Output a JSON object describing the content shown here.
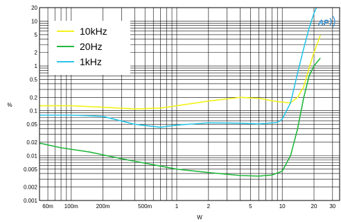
{
  "chart_data": {
    "type": "line",
    "title": "",
    "xlabel": "W",
    "ylabel": "%",
    "x_scale": "log",
    "y_scale": "log",
    "xlim": [
      0.05,
      35
    ],
    "ylim": [
      0.001,
      20
    ],
    "grid": true,
    "legend_position": "top-left",
    "x_ticks": [
      {
        "v": 0.06,
        "label": "60m"
      },
      {
        "v": 0.1,
        "label": "100m"
      },
      {
        "v": 0.2,
        "label": "200m"
      },
      {
        "v": 0.5,
        "label": "500m"
      },
      {
        "v": 1,
        "label": "1"
      },
      {
        "v": 2,
        "label": "2"
      },
      {
        "v": 5,
        "label": "5"
      },
      {
        "v": 10,
        "label": "10"
      },
      {
        "v": 20,
        "label": "20"
      },
      {
        "v": 30,
        "label": "30"
      }
    ],
    "y_ticks": [
      {
        "v": 0.001,
        "label": "0.001"
      },
      {
        "v": 0.002,
        "label": "0.002"
      },
      {
        "v": 0.005,
        "label": "0.005"
      },
      {
        "v": 0.01,
        "label": "0.01"
      },
      {
        "v": 0.02,
        "label": "0.02"
      },
      {
        "v": 0.05,
        "label": "0.05"
      },
      {
        "v": 0.1,
        "label": "0.1"
      },
      {
        "v": 0.2,
        "label": "0.2"
      },
      {
        "v": 0.5,
        "label": "0.5"
      },
      {
        "v": 1,
        "label": "1"
      },
      {
        "v": 2,
        "label": "2"
      },
      {
        "v": 5,
        "label": "5"
      },
      {
        "v": 10,
        "label": "10"
      },
      {
        "v": 20,
        "label": "20"
      }
    ],
    "series": [
      {
        "name": "10kHz",
        "color": "#f2f21a",
        "points": [
          [
            0.05,
            0.13
          ],
          [
            0.1,
            0.13
          ],
          [
            0.2,
            0.12
          ],
          [
            0.4,
            0.11
          ],
          [
            0.7,
            0.115
          ],
          [
            1,
            0.13
          ],
          [
            2,
            0.165
          ],
          [
            4,
            0.2
          ],
          [
            6,
            0.19
          ],
          [
            9,
            0.16
          ],
          [
            12,
            0.15
          ],
          [
            14,
            0.2
          ],
          [
            16,
            0.35
          ],
          [
            18,
            0.9
          ],
          [
            20,
            2.0
          ],
          [
            23,
            4.8
          ]
        ]
      },
      {
        "name": "20Hz",
        "color": "#22b83c",
        "points": [
          [
            0.05,
            0.019
          ],
          [
            0.08,
            0.015
          ],
          [
            0.15,
            0.012
          ],
          [
            0.3,
            0.0085
          ],
          [
            0.5,
            0.0068
          ],
          [
            1,
            0.005
          ],
          [
            2,
            0.0042
          ],
          [
            4,
            0.0036
          ],
          [
            6,
            0.0035
          ],
          [
            8,
            0.0037
          ],
          [
            10,
            0.0045
          ],
          [
            12,
            0.01
          ],
          [
            14,
            0.04
          ],
          [
            16,
            0.2
          ],
          [
            18,
            0.6
          ],
          [
            20,
            1.0
          ],
          [
            23,
            1.5
          ]
        ]
      },
      {
        "name": "1kHz",
        "color": "#29c6e8",
        "points": [
          [
            0.05,
            0.08
          ],
          [
            0.1,
            0.08
          ],
          [
            0.2,
            0.075
          ],
          [
            0.4,
            0.05
          ],
          [
            0.7,
            0.043
          ],
          [
            1,
            0.048
          ],
          [
            2,
            0.054
          ],
          [
            4,
            0.053
          ],
          [
            6,
            0.051
          ],
          [
            9,
            0.055
          ],
          [
            10,
            0.065
          ],
          [
            12,
            0.15
          ],
          [
            14,
            0.7
          ],
          [
            16,
            2.5
          ],
          [
            18,
            7
          ],
          [
            20,
            15
          ],
          [
            22,
            25
          ]
        ]
      }
    ]
  },
  "logo": {
    "text": "AP",
    "color": "#2f8fd8"
  }
}
